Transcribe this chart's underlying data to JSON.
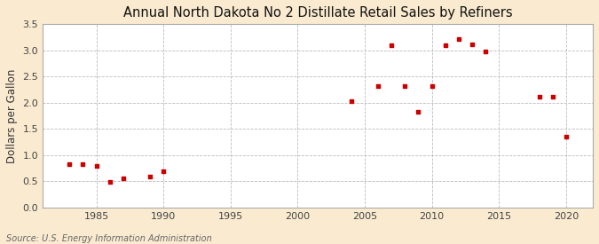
{
  "title": "Annual North Dakota No 2 Distillate Retail Sales by Refiners",
  "ylabel": "Dollars per Gallon",
  "source": "Source: U.S. Energy Information Administration",
  "fig_bg_color": "#faebd0",
  "plot_bg_color": "#ffffff",
  "marker_color": "#cc0000",
  "years": [
    1983,
    1984,
    1985,
    1986,
    1987,
    1989,
    1990,
    2004,
    2006,
    2007,
    2008,
    2009,
    2010,
    2011,
    2012,
    2013,
    2014,
    2018,
    2019,
    2020
  ],
  "values": [
    0.83,
    0.83,
    0.79,
    0.49,
    0.56,
    0.6,
    0.69,
    2.03,
    2.32,
    3.1,
    2.32,
    1.83,
    2.32,
    3.1,
    3.22,
    3.12,
    2.98,
    2.12,
    2.12,
    1.35
  ],
  "xlim": [
    1981,
    2022
  ],
  "ylim": [
    0.0,
    3.5
  ],
  "yticks": [
    0.0,
    0.5,
    1.0,
    1.5,
    2.0,
    2.5,
    3.0,
    3.5
  ],
  "xticks": [
    1985,
    1990,
    1995,
    2000,
    2005,
    2010,
    2015,
    2020
  ],
  "title_fontsize": 10.5,
  "label_fontsize": 8.5,
  "tick_fontsize": 8,
  "source_fontsize": 7
}
